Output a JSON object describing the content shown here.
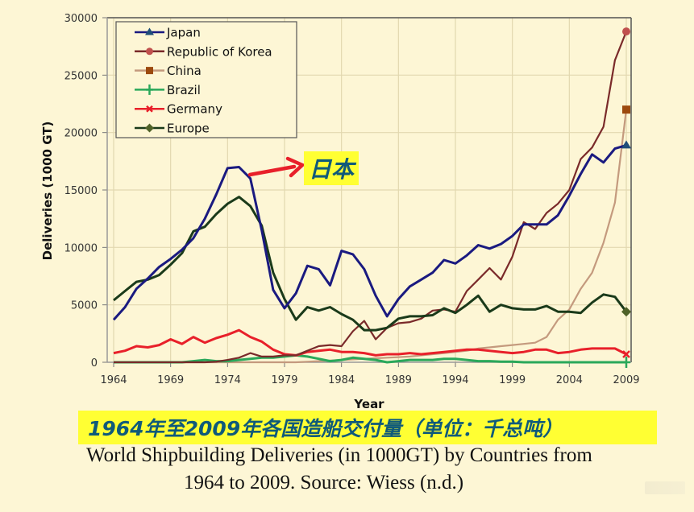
{
  "chart_data": {
    "type": "line",
    "title": "World Shipbuilding Deliveries (in 1000GT) by Countries from 1964 to 2009",
    "xlabel": "Year",
    "ylabel": "Deliveries (1000 GT)",
    "ylim": [
      0,
      30000
    ],
    "xlim": [
      1964,
      2009
    ],
    "grid": true,
    "legend_position": "top-left (inside)",
    "y_ticks": [
      "0",
      "5000",
      "10000",
      "15000",
      "20000",
      "25000",
      "30000"
    ],
    "x_ticks": [
      "1964",
      "1969",
      "1974",
      "1979",
      "1984",
      "1989",
      "1994",
      "1999",
      "2004",
      "2009"
    ],
    "x": [
      1964,
      1965,
      1966,
      1967,
      1968,
      1969,
      1970,
      1971,
      1972,
      1973,
      1974,
      1975,
      1976,
      1977,
      1978,
      1979,
      1980,
      1981,
      1982,
      1983,
      1984,
      1985,
      1986,
      1987,
      1988,
      1989,
      1990,
      1991,
      1992,
      1993,
      1994,
      1995,
      1996,
      1997,
      1998,
      1999,
      2000,
      2001,
      2002,
      2003,
      2004,
      2005,
      2006,
      2007,
      2008,
      2009
    ],
    "series": [
      {
        "name": "Japan",
        "color": "#1a1a80",
        "marker": "triangle",
        "marker_color": "#1f4e79",
        "values": [
          3700,
          4800,
          6400,
          7300,
          8300,
          9000,
          9800,
          10800,
          12500,
          14600,
          16900,
          17000,
          16000,
          11500,
          6300,
          4700,
          6000,
          8400,
          8100,
          6700,
          9700,
          9400,
          8100,
          5800,
          4000,
          5500,
          6600,
          7200,
          7800,
          8900,
          8600,
          9300,
          10200,
          9900,
          10300,
          11000,
          12000,
          12000,
          12000,
          12800,
          14500,
          16400,
          18100,
          17400,
          18600,
          18900
        ]
      },
      {
        "name": "Republic of Korea",
        "color": "#7a2a2a",
        "marker": "circle",
        "marker_color": "#c0504d",
        "values": [
          0,
          0,
          0,
          0,
          0,
          0,
          0,
          0,
          0,
          50,
          200,
          400,
          800,
          500,
          500,
          600,
          600,
          1000,
          1400,
          1500,
          1400,
          2700,
          3600,
          2000,
          3000,
          3400,
          3500,
          3800,
          4500,
          4600,
          4400,
          6200,
          7200,
          8200,
          7200,
          9200,
          12200,
          11600,
          13000,
          13800,
          15000,
          17700,
          18700,
          20500,
          26300,
          28800
        ]
      },
      {
        "name": "China",
        "color": "#c49a7e",
        "marker": "square",
        "marker_color": "#9c4a0e",
        "values": [
          0,
          0,
          0,
          0,
          0,
          0,
          0,
          0,
          0,
          0,
          0,
          0,
          0,
          0,
          0,
          0,
          0,
          50,
          100,
          150,
          200,
          250,
          300,
          350,
          400,
          450,
          500,
          600,
          700,
          800,
          900,
          1000,
          1200,
          1300,
          1400,
          1500,
          1600,
          1700,
          2200,
          3700,
          4600,
          6400,
          7800,
          10400,
          13900,
          22000
        ]
      },
      {
        "name": "Brazil",
        "color": "#2aa85a",
        "marker": "plus",
        "marker_color": "#2aa85a",
        "values": [
          0,
          0,
          0,
          0,
          0,
          0,
          0,
          100,
          200,
          100,
          100,
          200,
          300,
          400,
          400,
          500,
          600,
          500,
          300,
          100,
          200,
          400,
          300,
          200,
          0,
          100,
          200,
          200,
          200,
          300,
          300,
          200,
          100,
          100,
          50,
          50,
          0,
          0,
          0,
          0,
          0,
          0,
          0,
          0,
          0,
          0
        ]
      },
      {
        "name": "Germany",
        "color": "#e8202a",
        "marker": "x",
        "marker_color": "#e8202a",
        "values": [
          800,
          1000,
          1400,
          1300,
          1500,
          2000,
          1600,
          2200,
          1700,
          2100,
          2400,
          2800,
          2200,
          1800,
          1100,
          700,
          600,
          900,
          1000,
          1100,
          900,
          900,
          800,
          600,
          700,
          700,
          800,
          700,
          800,
          900,
          1000,
          1100,
          1100,
          1000,
          900,
          800,
          900,
          1100,
          1100,
          800,
          900,
          1100,
          1200,
          1200,
          1200,
          700
        ]
      },
      {
        "name": "Europe",
        "color": "#1a3a1a",
        "marker": "diamond",
        "marker_color": "#4f6228",
        "values": [
          5400,
          6200,
          7000,
          7200,
          7600,
          8500,
          9500,
          11400,
          11800,
          12900,
          13800,
          14400,
          13600,
          11900,
          7800,
          5500,
          3700,
          4800,
          4500,
          4800,
          4200,
          3700,
          2800,
          2800,
          3000,
          3800,
          4000,
          4000,
          4100,
          4700,
          4300,
          5000,
          5800,
          4400,
          5000,
          4700,
          4600,
          4600,
          4900,
          4400,
          4400,
          4300,
          5200,
          5900,
          5700,
          4400
        ]
      }
    ],
    "annotations": [
      {
        "text": "日本",
        "points_to": "Japan peak ~1975",
        "style": "red arrow, yellow highlight"
      }
    ]
  },
  "annotation": {
    "label": "日本"
  },
  "chinese_title": "1964年至2009年各国造船交付量（单位：千总吨）",
  "caption": {
    "line1": "World Shipbuilding Deliveries (in 1000GT) by Countries from",
    "line2": "1964 to 2009. Source: Wiess (n.d.)"
  },
  "legend": [
    {
      "label": "Japan"
    },
    {
      "label": "Republic of Korea"
    },
    {
      "label": "China"
    },
    {
      "label": "Brazil"
    },
    {
      "label": "Germany"
    },
    {
      "label": "Europe"
    }
  ],
  "axis": {
    "xlabel": "Year",
    "ylabel": "Deliveries (1000 GT)"
  },
  "colors": {
    "background": "#fdf6d5",
    "highlight": "#ffff33",
    "title_text": "#0f5a7a",
    "arrow": "#e8202a",
    "grid": "#e2d8b0"
  }
}
